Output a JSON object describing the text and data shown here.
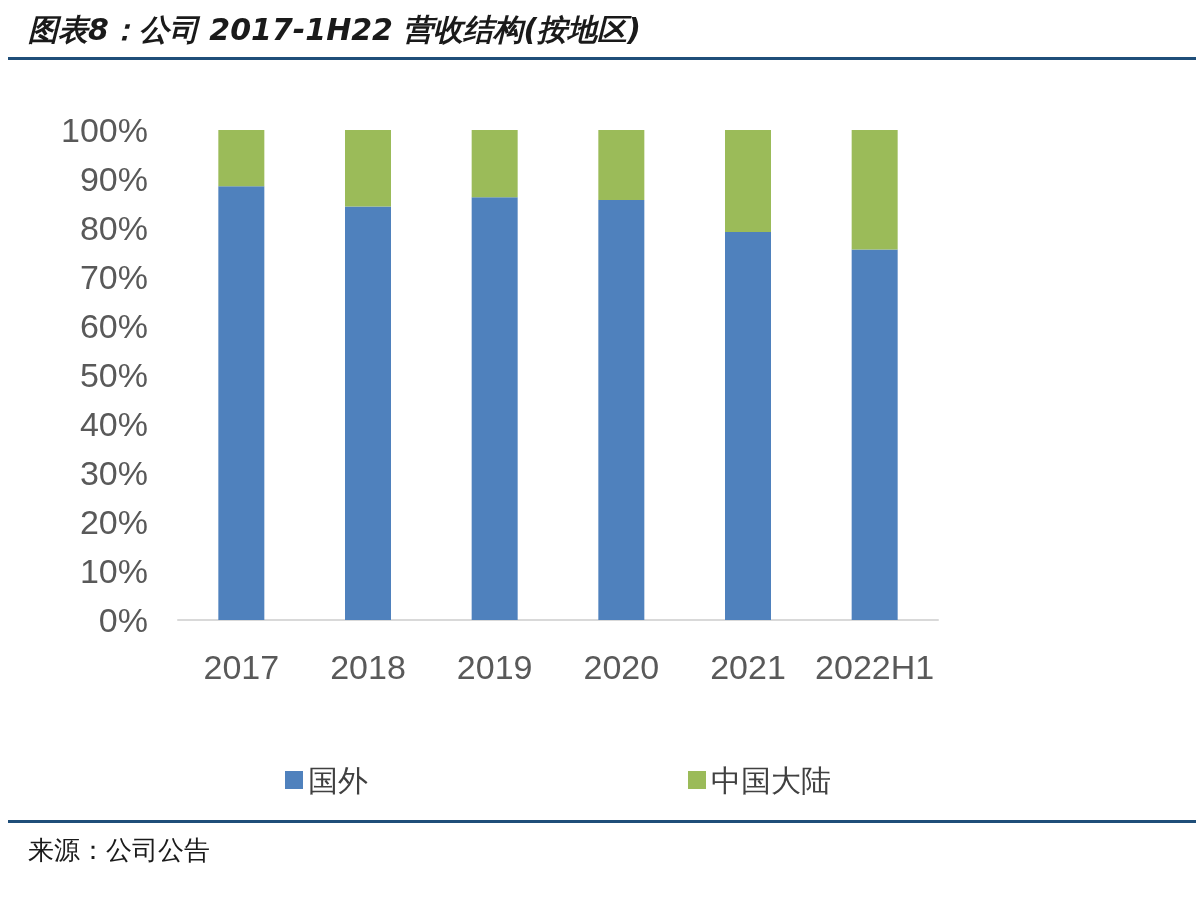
{
  "chart_data": {
    "type": "bar",
    "title": "图表8：公司 2017-1H22 营收结构(按地区)",
    "categories": [
      "2017",
      "2018",
      "2019",
      "2020",
      "2021",
      "2022H1"
    ],
    "series": [
      {
        "name": "国外",
        "color": "#4f81bd",
        "values": [
          88.5,
          84.4,
          86.3,
          85.7,
          79.2,
          75.6
        ]
      },
      {
        "name": "中国大陆",
        "color": "#9bbb59",
        "values": [
          11.5,
          15.6,
          13.7,
          14.3,
          20.8,
          24.4
        ]
      }
    ],
    "stacked": true,
    "ylim": [
      0,
      100
    ],
    "yticks": [
      {
        "value": 0,
        "label": "0%"
      },
      {
        "value": 10,
        "label": "10%"
      },
      {
        "value": 20,
        "label": "20%"
      },
      {
        "value": 30,
        "label": "30%"
      },
      {
        "value": 40,
        "label": "40%"
      },
      {
        "value": 50,
        "label": "50%"
      },
      {
        "value": 60,
        "label": "60%"
      },
      {
        "value": 70,
        "label": "70%"
      },
      {
        "value": 80,
        "label": "80%"
      },
      {
        "value": 90,
        "label": "90%"
      },
      {
        "value": 100,
        "label": "100%"
      }
    ],
    "grid": false,
    "legend": "bottom",
    "annotations": [
      "来源：公司公告"
    ]
  }
}
